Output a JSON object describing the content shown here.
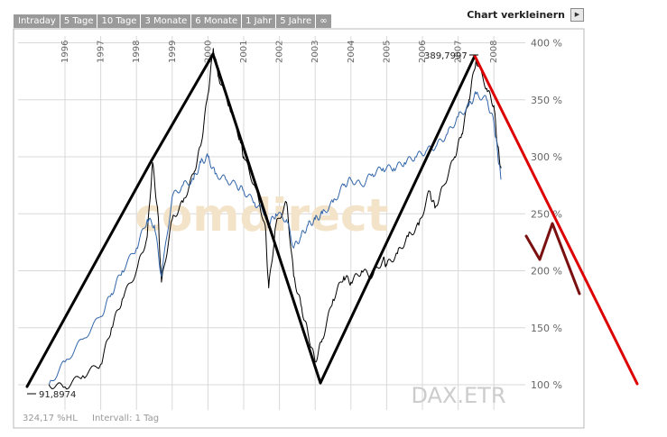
{
  "tabs": [
    "Intraday",
    "5 Tage",
    "10 Tage",
    "3 Monate",
    "6 Monate",
    "1 Jahr",
    "5 Jahre",
    "∞"
  ],
  "zoom": {
    "label": "Chart verkleinern",
    "icon": "play-arrow-icon"
  },
  "watermark": {
    "brand": "comdirect",
    "symbol": "DAX.ETR"
  },
  "footer": {
    "left": "324,17 %HL",
    "right": "Intervall: 1 Tag"
  },
  "annotations": {
    "low": "91,8974",
    "high": "389,7997"
  },
  "colors": {
    "black_series": "#000000",
    "blue_series": "#3366aa",
    "red_line": "#dd0000",
    "dark_red_line": "#7a1010",
    "tab_bg": "#9a9a9a",
    "grid": "#d8d8d8"
  },
  "chart_data": {
    "type": "line",
    "x_ticks": [
      "1996",
      "1997",
      "1998",
      "1999",
      "2000",
      "2001",
      "2002",
      "2003",
      "2004",
      "2005",
      "2006",
      "2007",
      "2008"
    ],
    "y_ticks": [
      "100 %",
      "150 %",
      "200 %",
      "250 %",
      "300 %",
      "350 %",
      "400 %"
    ],
    "ylim": [
      100,
      400
    ],
    "xlim": [
      1995.5,
      2008.5
    ],
    "grid": true,
    "series": [
      {
        "name": "",
        "color": "#000000",
        "x": [
          1995.55,
          1996.0,
          1996.5,
          1997.0,
          1997.3,
          1997.6,
          1998.0,
          1998.3,
          1998.45,
          1998.6,
          1998.7,
          1999.0,
          1999.3,
          1999.6,
          1999.8,
          2000.0,
          2000.15,
          2000.3,
          2000.6,
          2000.9,
          2001.0,
          2001.3,
          2001.6,
          2001.7,
          2001.9,
          2002.2,
          2002.4,
          2002.6,
          2002.8,
          2003.0,
          2003.2,
          2003.5,
          2003.8,
          2004.0,
          2004.3,
          2004.6,
          2004.9,
          2005.0,
          2005.3,
          2005.6,
          2005.9,
          2006.2,
          2006.35,
          2006.6,
          2006.9,
          2007.1,
          2007.3,
          2007.5,
          2007.8,
          2008.0,
          2008.1,
          2008.2
        ],
        "y": [
          100,
          98,
          108,
          118,
          150,
          175,
          200,
          230,
          295,
          250,
          190,
          245,
          260,
          285,
          310,
          355,
          395,
          370,
          345,
          315,
          300,
          275,
          240,
          185,
          240,
          260,
          195,
          170,
          145,
          120,
          140,
          175,
          195,
          190,
          200,
          195,
          210,
          205,
          215,
          230,
          240,
          270,
          255,
          275,
          300,
          320,
          350,
          385,
          360,
          345,
          310,
          290
        ]
      },
      {
        "name": "",
        "color": "#3366aa",
        "x": [
          1995.55,
          1996.0,
          1996.5,
          1997.0,
          1997.3,
          1997.6,
          1998.0,
          1998.3,
          1998.5,
          1998.7,
          1999.0,
          1999.3,
          1999.6,
          1999.8,
          2000.0,
          2000.2,
          2000.5,
          2000.8,
          2001.0,
          2001.3,
          2001.6,
          2001.7,
          2001.9,
          2002.2,
          2002.4,
          2002.6,
          2002.8,
          2003.0,
          2003.2,
          2003.5,
          2003.8,
          2004.0,
          2004.3,
          2004.6,
          2004.9,
          2005.2,
          2005.5,
          2005.8,
          2006.1,
          2006.4,
          2006.7,
          2007.0,
          2007.3,
          2007.5,
          2007.8,
          2008.0,
          2008.1,
          2008.2
        ],
        "y": [
          100,
          120,
          140,
          160,
          180,
          200,
          220,
          245,
          240,
          195,
          265,
          275,
          280,
          295,
          300,
          285,
          280,
          275,
          270,
          260,
          250,
          240,
          250,
          245,
          220,
          230,
          240,
          245,
          250,
          260,
          275,
          280,
          275,
          285,
          290,
          290,
          295,
          300,
          305,
          310,
          320,
          335,
          345,
          355,
          350,
          330,
          305,
          280
        ]
      }
    ]
  }
}
